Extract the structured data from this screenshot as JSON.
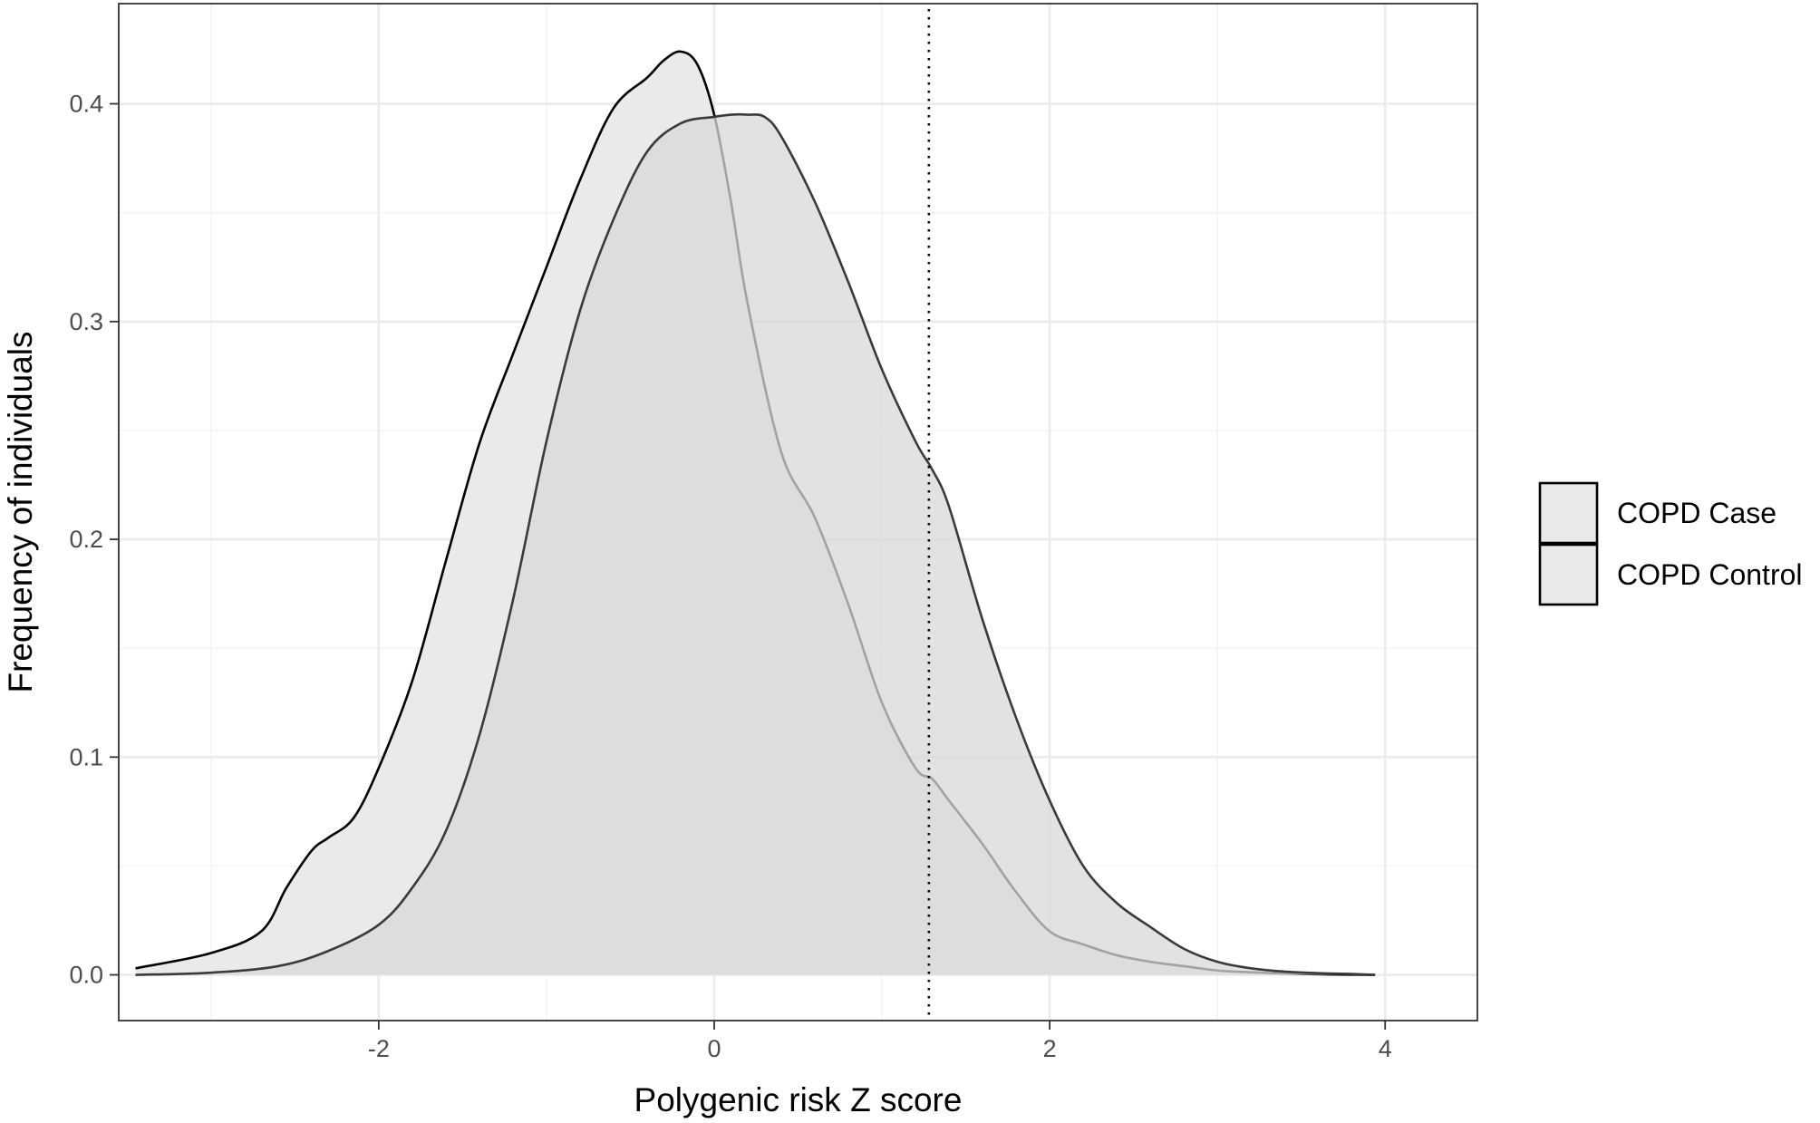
{
  "chart_data": {
    "type": "area",
    "title": "",
    "xlabel": "Polygenic risk Z score",
    "ylabel": "Frequency of individuals",
    "xlim": [
      -3.55,
      4.55
    ],
    "ylim": [
      -0.021,
      0.446
    ],
    "x_ticks": [
      -2,
      0,
      2,
      4
    ],
    "x_tick_labels": [
      "-2",
      "0",
      "2",
      "4"
    ],
    "y_ticks": [
      0.0,
      0.1,
      0.2,
      0.3,
      0.4
    ],
    "y_tick_labels": [
      "0.0",
      "0.1",
      "0.2",
      "0.3",
      "0.4"
    ],
    "grid": true,
    "legend_position": "right",
    "reference_line": {
      "x": 1.28,
      "style": "dotted"
    },
    "fill_colors": {
      "COPD Case": "#ebebeb",
      "COPD Control": "#d9d9d9"
    },
    "series": [
      {
        "name": "COPD Control",
        "fill": "#e9e9e9",
        "x": [
          -3.45,
          -3.0,
          -2.7,
          -2.55,
          -2.4,
          -2.3,
          -2.15,
          -2.0,
          -1.8,
          -1.6,
          -1.4,
          -1.2,
          -1.0,
          -0.8,
          -0.6,
          -0.4,
          -0.3,
          -0.2,
          -0.1,
          0.0,
          0.1,
          0.2,
          0.4,
          0.6,
          0.8,
          1.0,
          1.2,
          1.3,
          1.4,
          1.6,
          1.8,
          2.0,
          2.2,
          2.4,
          2.6,
          2.8,
          3.0,
          3.2,
          3.4,
          3.6,
          3.8,
          3.94
        ],
        "values": [
          0.003,
          0.01,
          0.02,
          0.04,
          0.057,
          0.063,
          0.072,
          0.095,
          0.135,
          0.19,
          0.244,
          0.285,
          0.325,
          0.365,
          0.398,
          0.412,
          0.42,
          0.424,
          0.418,
          0.395,
          0.355,
          0.308,
          0.24,
          0.21,
          0.17,
          0.125,
          0.095,
          0.09,
          0.08,
          0.06,
          0.038,
          0.02,
          0.014,
          0.009,
          0.006,
          0.004,
          0.002,
          0.0012,
          0.0006,
          0.0003,
          0.0001,
          0.0
        ]
      },
      {
        "name": "COPD Case",
        "fill": "#d8d8d8",
        "x": [
          -3.45,
          -3.0,
          -2.6,
          -2.3,
          -2.0,
          -1.8,
          -1.6,
          -1.4,
          -1.2,
          -1.0,
          -0.8,
          -0.6,
          -0.4,
          -0.2,
          0.0,
          0.1,
          0.2,
          0.3,
          0.4,
          0.6,
          0.8,
          1.0,
          1.2,
          1.3,
          1.4,
          1.6,
          1.8,
          2.0,
          2.2,
          2.4,
          2.6,
          2.8,
          3.0,
          3.2,
          3.4,
          3.6,
          3.8,
          3.94
        ],
        "values": [
          0.0,
          0.001,
          0.004,
          0.011,
          0.023,
          0.04,
          0.066,
          0.11,
          0.172,
          0.245,
          0.305,
          0.347,
          0.378,
          0.391,
          0.394,
          0.395,
          0.395,
          0.394,
          0.385,
          0.355,
          0.318,
          0.278,
          0.245,
          0.232,
          0.215,
          0.163,
          0.118,
          0.08,
          0.05,
          0.033,
          0.022,
          0.012,
          0.006,
          0.003,
          0.0015,
          0.0008,
          0.0004,
          0.0
        ]
      }
    ],
    "legend": [
      {
        "label": "COPD Case",
        "fill": "#e9e9e9"
      },
      {
        "label": "COPD Control",
        "fill": "#e9e9e9"
      }
    ]
  }
}
